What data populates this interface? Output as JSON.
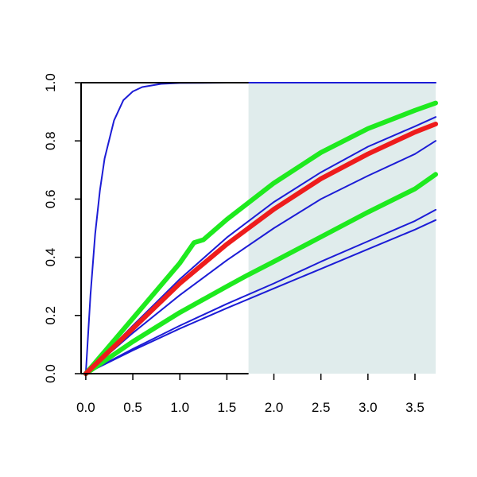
{
  "chart_data": {
    "type": "line",
    "title": "",
    "xlabel": "",
    "ylabel": "",
    "xlim": [
      -0.05,
      3.72
    ],
    "ylim": [
      0,
      1
    ],
    "grid": false,
    "x_ticks": [
      "0.0",
      "0.5",
      "1.0",
      "1.5",
      "2.0",
      "2.5",
      "3.0",
      "3.5"
    ],
    "y_ticks": [
      "0.0",
      "0.2",
      "0.4",
      "0.6",
      "0.8",
      "1.0"
    ],
    "shaded_region": {
      "x_from": 1.73,
      "x_to": 3.72,
      "color": "#e0ecec"
    },
    "series": [
      {
        "color": "#1c1cd6",
        "width": "thin",
        "x": [
          0,
          0.05,
          0.1,
          0.15,
          0.2,
          0.3,
          0.4,
          0.5,
          0.6,
          0.8,
          1.0,
          1.5,
          2.0,
          3.0,
          3.72
        ],
        "y": [
          0,
          0.27,
          0.48,
          0.63,
          0.74,
          0.87,
          0.94,
          0.97,
          0.985,
          0.996,
          0.999,
          1.0,
          1.0,
          1.0,
          1.0
        ]
      },
      {
        "color": "#1c1cd6",
        "width": "thin",
        "x": [
          0,
          0.5,
          1.0,
          1.5,
          2.0,
          2.5,
          3.0,
          3.5,
          3.72
        ],
        "y": [
          0,
          0.165,
          0.325,
          0.468,
          0.59,
          0.692,
          0.78,
          0.85,
          0.882
        ]
      },
      {
        "color": "#1c1cd6",
        "width": "thin",
        "x": [
          0,
          0.5,
          1.0,
          1.5,
          2.0,
          2.5,
          3.0,
          3.5,
          3.72
        ],
        "y": [
          0,
          0.14,
          0.27,
          0.39,
          0.5,
          0.6,
          0.68,
          0.755,
          0.8
        ]
      },
      {
        "color": "#1c1cd6",
        "width": "thin",
        "x": [
          0,
          0.5,
          1.0,
          1.5,
          2.0,
          2.5,
          3.0,
          3.5,
          3.72
        ],
        "y": [
          0,
          0.085,
          0.165,
          0.24,
          0.31,
          0.385,
          0.455,
          0.525,
          0.563
        ]
      },
      {
        "color": "#1c1cd6",
        "width": "thin",
        "x": [
          0,
          0.5,
          1.0,
          1.5,
          2.0,
          2.5,
          3.0,
          3.5,
          3.72
        ],
        "y": [
          0,
          0.08,
          0.155,
          0.225,
          0.293,
          0.36,
          0.428,
          0.495,
          0.528
        ]
      },
      {
        "color": "#1eea1e",
        "width": "thick",
        "x": [
          0,
          0.5,
          1.0,
          1.15,
          1.25,
          1.5,
          2.0,
          2.5,
          3.0,
          3.5,
          3.72
        ],
        "y": [
          0,
          0.19,
          0.38,
          0.45,
          0.46,
          0.53,
          0.655,
          0.76,
          0.842,
          0.905,
          0.93
        ]
      },
      {
        "color": "#1eea1e",
        "width": "thick",
        "x": [
          0,
          0.5,
          1.0,
          1.5,
          1.7,
          2.0,
          2.5,
          3.0,
          3.5,
          3.72
        ],
        "y": [
          0,
          0.11,
          0.21,
          0.3,
          0.335,
          0.385,
          0.47,
          0.555,
          0.635,
          0.685
        ]
      },
      {
        "color": "#ee1c1c",
        "width": "thick",
        "x": [
          0,
          0.5,
          1.0,
          1.5,
          2.0,
          2.5,
          3.0,
          3.5,
          3.72
        ],
        "y": [
          0,
          0.155,
          0.31,
          0.445,
          0.565,
          0.67,
          0.755,
          0.83,
          0.858
        ]
      }
    ]
  }
}
